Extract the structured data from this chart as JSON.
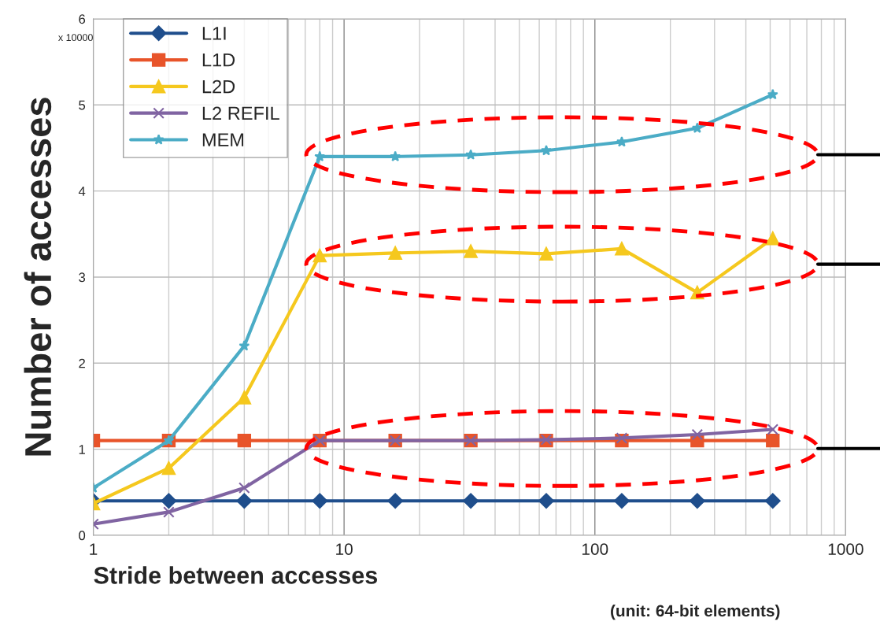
{
  "chart_data": {
    "type": "line",
    "xlabel": "Stride between accesses",
    "ylabel": "Number of accesses",
    "annotations": [
      "x 10000",
      "(unit: 64-bit elements)"
    ],
    "x": [
      1,
      2,
      4,
      8,
      16,
      32,
      64,
      128,
      256,
      512
    ],
    "series": [
      {
        "name": "L1I",
        "color": "#1f4e8c",
        "marker": "diamond",
        "values": [
          0.4,
          0.4,
          0.4,
          0.4,
          0.4,
          0.4,
          0.4,
          0.4,
          0.4,
          0.4
        ]
      },
      {
        "name": "L1D",
        "color": "#e8542a",
        "marker": "square",
        "values": [
          1.1,
          1.1,
          1.1,
          1.1,
          1.1,
          1.1,
          1.1,
          1.1,
          1.1,
          1.1
        ]
      },
      {
        "name": "L2D",
        "color": "#f5c81e",
        "marker": "triangle",
        "values": [
          0.37,
          0.78,
          1.6,
          3.25,
          3.28,
          3.3,
          3.27,
          3.33,
          2.82,
          3.45
        ]
      },
      {
        "name": "L2 REFIL",
        "color": "#8064a2",
        "marker": "cross",
        "values": [
          0.13,
          0.27,
          0.55,
          1.1,
          1.1,
          1.1,
          1.11,
          1.13,
          1.17,
          1.23
        ]
      },
      {
        "name": "MEM",
        "color": "#4bacc6",
        "marker": "star",
        "values": [
          0.55,
          1.1,
          2.2,
          4.4,
          4.4,
          4.42,
          4.47,
          4.57,
          4.73,
          5.12
        ]
      }
    ],
    "log": "x",
    "xlim": [
      1,
      1000
    ],
    "xticks": [
      1,
      10,
      100,
      1000
    ],
    "ylim": [
      0,
      6
    ],
    "yticks": [
      0,
      1,
      2,
      3,
      4,
      5,
      6
    ],
    "grid": true,
    "legend": "top left",
    "line_style": "solid"
  }
}
